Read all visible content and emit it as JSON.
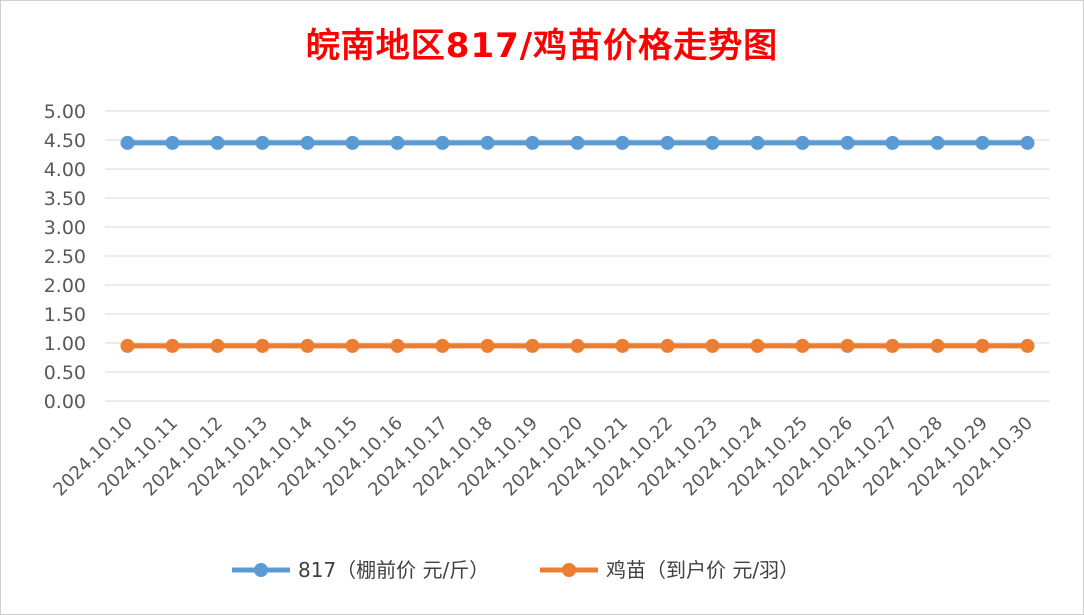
{
  "chart_data": {
    "type": "line",
    "title": "皖南地区817/鸡苗价格走势图",
    "xlabel": "",
    "ylabel": "",
    "ylim": [
      0,
      5
    ],
    "ytick_step": 0.5,
    "grid": true,
    "legend_position": "bottom",
    "categories": [
      "2024.10.10",
      "2024.10.11",
      "2024.10.12",
      "2024.10.13",
      "2024.10.14",
      "2024.10.15",
      "2024.10.16",
      "2024.10.17",
      "2024.10.18",
      "2024.10.19",
      "2024.10.20",
      "2024.10.21",
      "2024.10.22",
      "2024.10.23",
      "2024.10.24",
      "2024.10.25",
      "2024.10.26",
      "2024.10.27",
      "2024.10.28",
      "2024.10.29",
      "2024.10.30"
    ],
    "series": [
      {
        "name": "817（棚前价 元/斤）",
        "color": "#5b9bd5",
        "values": [
          4.45,
          4.45,
          4.45,
          4.45,
          4.45,
          4.45,
          4.45,
          4.45,
          4.45,
          4.45,
          4.45,
          4.45,
          4.45,
          4.45,
          4.45,
          4.45,
          4.45,
          4.45,
          4.45,
          4.45,
          4.45
        ]
      },
      {
        "name": "鸡苗（到户价 元/羽）",
        "color": "#ed7d31",
        "values": [
          0.95,
          0.95,
          0.95,
          0.95,
          0.95,
          0.95,
          0.95,
          0.95,
          0.95,
          0.95,
          0.95,
          0.95,
          0.95,
          0.95,
          0.95,
          0.95,
          0.95,
          0.95,
          0.95,
          0.95,
          0.95
        ]
      }
    ]
  }
}
